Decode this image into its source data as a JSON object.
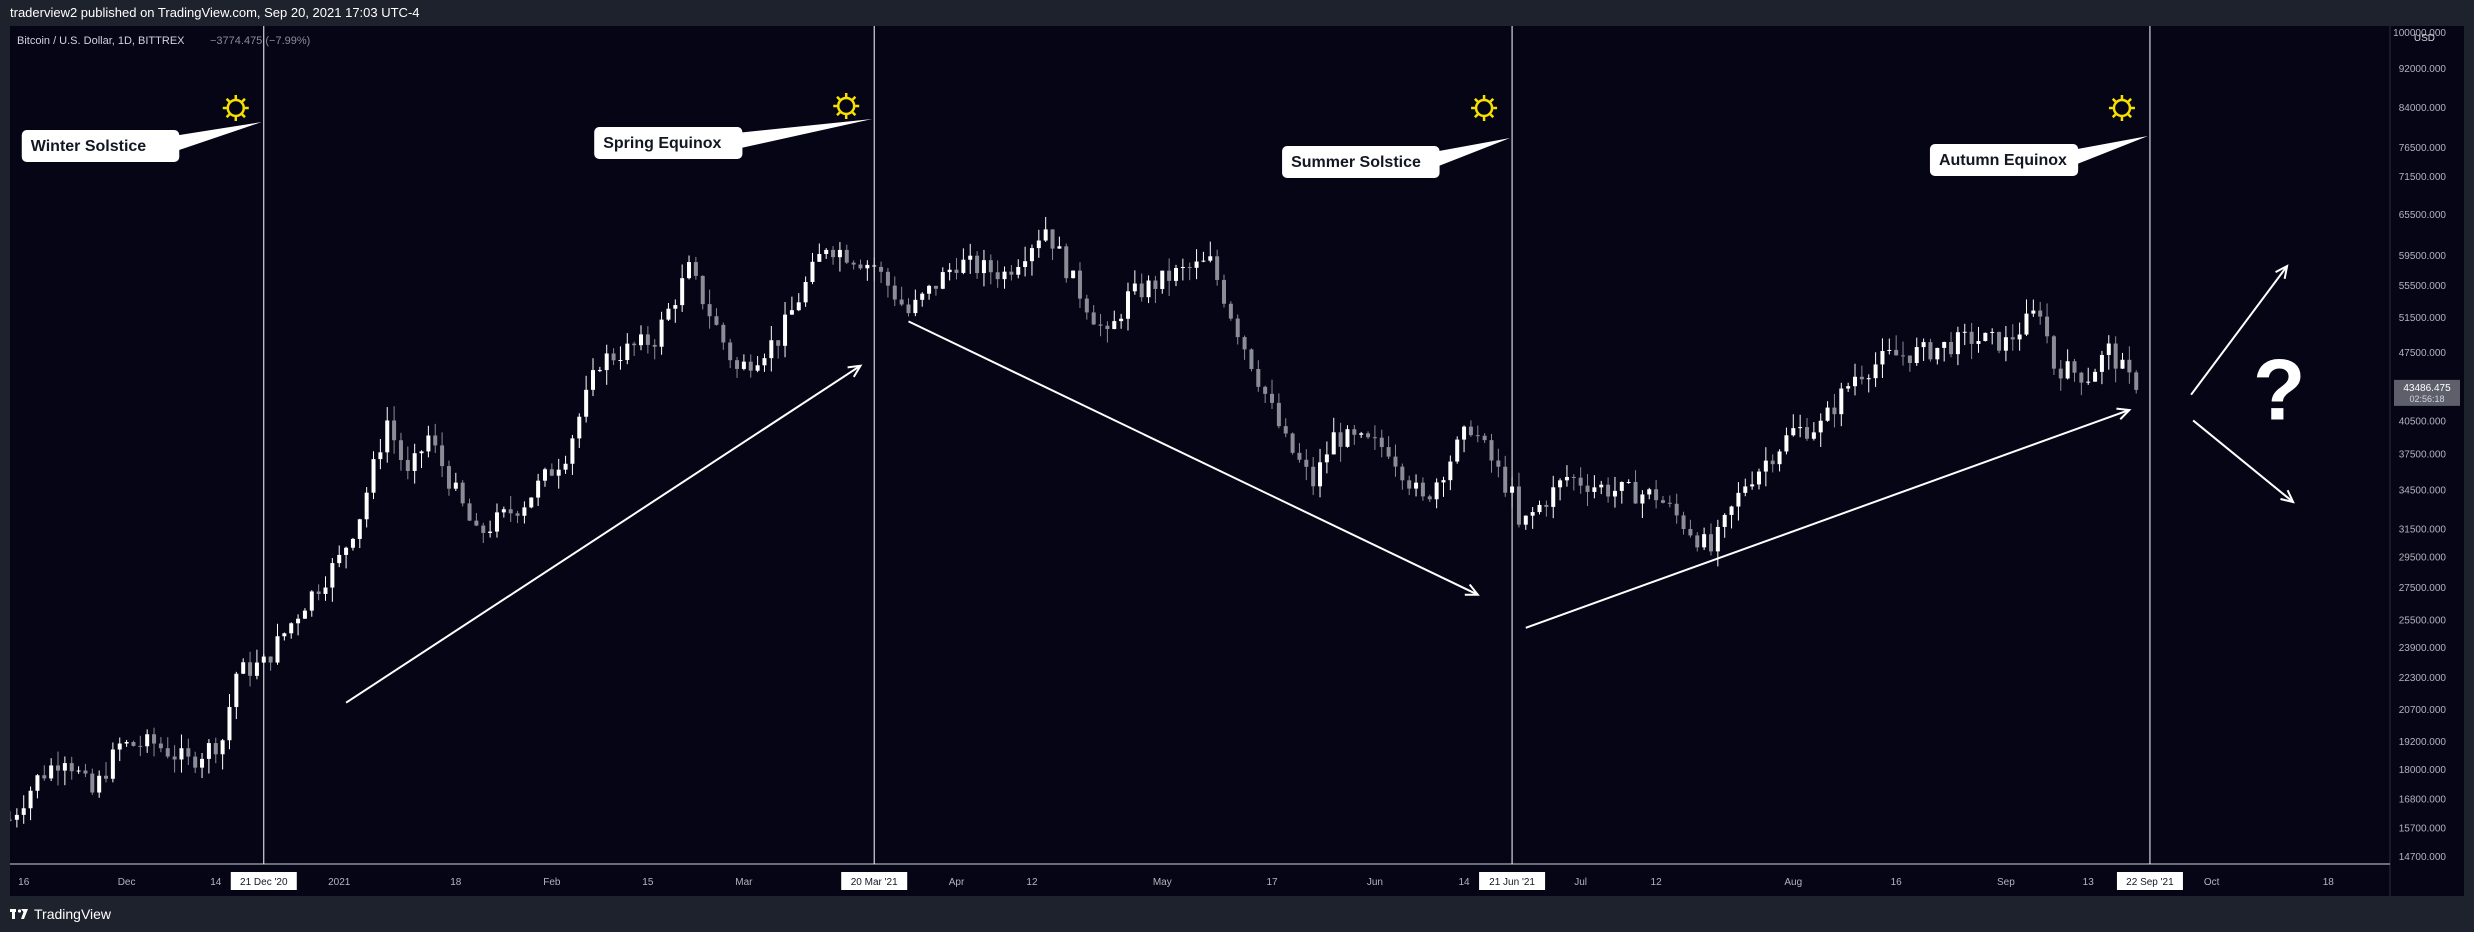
{
  "header": {
    "published_text": "traderview2 published on TradingView.com, Sep 20, 2021 17:03 UTC-4"
  },
  "footer": {
    "logo_glyph": "𝟭𝟳",
    "brand": "TradingView"
  },
  "colors": {
    "background": "#050516",
    "frame": "#1e222d",
    "candle_up": "#ffffff",
    "candle_down": "#8a8d96",
    "sun": "#f5e000",
    "accent_line": "#ffffff"
  },
  "chart_data": {
    "type": "candlestick",
    "symbol_text": "Bitcoin / U.S. Dollar, 1D, BITTREX",
    "change_text": "−3774.475 (−7.99%)",
    "currency": "USD",
    "y_scale": "log",
    "ylim": [
      14700,
      100000
    ],
    "y_ticks": [
      "100000.000",
      "92000.000",
      "84000.000",
      "76500.000",
      "71500.000",
      "65500.000",
      "59500.000",
      "55500.000",
      "51500.000",
      "47500.000",
      "43486.475",
      "40500.000",
      "37500.000",
      "34500.000",
      "31500.000",
      "29500.000",
      "27500.000",
      "25500.000",
      "23900.000",
      "22300.000",
      "20700.000",
      "19200.000",
      "18000.000",
      "16800.000",
      "15700.000",
      "14700.000"
    ],
    "price_label": "43486.475",
    "countdown_label": "02:56:18",
    "x_range": [
      "2020-11-14",
      "2021-10-27"
    ],
    "x_ticks": [
      {
        "date": "2020-11-16",
        "label": "16"
      },
      {
        "date": "2020-12-01",
        "label": "Dec"
      },
      {
        "date": "2020-12-14",
        "label": "14"
      },
      {
        "date": "2021-01-01",
        "label": "2021"
      },
      {
        "date": "2021-01-18",
        "label": "18"
      },
      {
        "date": "2021-02-01",
        "label": "Feb"
      },
      {
        "date": "2021-02-15",
        "label": "15"
      },
      {
        "date": "2021-03-01",
        "label": "Mar"
      },
      {
        "date": "2021-04-01",
        "label": "Apr"
      },
      {
        "date": "2021-04-12",
        "label": "12"
      },
      {
        "date": "2021-05-01",
        "label": "May"
      },
      {
        "date": "2021-05-17",
        "label": "17"
      },
      {
        "date": "2021-06-01",
        "label": "Jun"
      },
      {
        "date": "2021-06-14",
        "label": "14"
      },
      {
        "date": "2021-07-01",
        "label": "Jul"
      },
      {
        "date": "2021-07-12",
        "label": "12"
      },
      {
        "date": "2021-08-01",
        "label": "Aug"
      },
      {
        "date": "2021-08-16",
        "label": "16"
      },
      {
        "date": "2021-09-01",
        "label": "Sep"
      },
      {
        "date": "2021-09-13",
        "label": "13"
      },
      {
        "date": "2021-10-01",
        "label": "Oct"
      },
      {
        "date": "2021-10-18",
        "label": "18"
      }
    ],
    "events": [
      {
        "date": "2020-12-21",
        "date_label": "21 Dec '20",
        "label": "Winter Solstice"
      },
      {
        "date": "2021-03-20",
        "date_label": "20 Mar '21",
        "label": "Spring Equinox"
      },
      {
        "date": "2021-06-21",
        "date_label": "21 Jun '21",
        "label": "Summer Solstice"
      },
      {
        "date": "2021-09-22",
        "date_label": "22 Sep '21",
        "label": "Autumn Equinox"
      }
    ],
    "trend_arrows": [
      {
        "from": [
          "2021-01-02",
          21000
        ],
        "to": [
          "2021-03-18",
          46000
        ]
      },
      {
        "from": [
          "2021-03-25",
          51000
        ],
        "to": [
          "2021-06-16",
          27000
        ]
      },
      {
        "from": [
          "2021-06-23",
          25000
        ],
        "to": [
          "2021-09-19",
          41500
        ]
      }
    ],
    "question_mark": "?",
    "close_path": [
      [
        "2020-11-14",
        16000
      ],
      [
        "2020-11-18",
        17600
      ],
      [
        "2020-11-22",
        18600
      ],
      [
        "2020-11-26",
        17000
      ],
      [
        "2020-11-30",
        19000
      ],
      [
        "2020-12-05",
        19100
      ],
      [
        "2020-12-10",
        18300
      ],
      [
        "2020-12-15",
        19300
      ],
      [
        "2020-12-17",
        22500
      ],
      [
        "2020-12-21",
        23000
      ],
      [
        "2020-12-27",
        26500
      ],
      [
        "2021-01-01",
        29300
      ],
      [
        "2021-01-04",
        32500
      ],
      [
        "2021-01-08",
        40500
      ],
      [
        "2021-01-11",
        35500
      ],
      [
        "2021-01-14",
        39000
      ],
      [
        "2021-01-21",
        31000
      ],
      [
        "2021-01-28",
        33500
      ],
      [
        "2021-02-03",
        37500
      ],
      [
        "2021-02-08",
        46500
      ],
      [
        "2021-02-16",
        49000
      ],
      [
        "2021-02-21",
        57500
      ],
      [
        "2021-02-28",
        45500
      ],
      [
        "2021-03-06",
        49000
      ],
      [
        "2021-03-13",
        61000
      ],
      [
        "2021-03-20",
        58000
      ],
      [
        "2021-03-25",
        52000
      ],
      [
        "2021-04-01",
        58500
      ],
      [
        "2021-04-08",
        57000
      ],
      [
        "2021-04-14",
        63500
      ],
      [
        "2021-04-18",
        56000
      ],
      [
        "2021-04-23",
        49000
      ],
      [
        "2021-04-26",
        54000
      ],
      [
        "2021-05-03",
        57000
      ],
      [
        "2021-05-08",
        58500
      ],
      [
        "2021-05-12",
        50000
      ],
      [
        "2021-05-19",
        38500
      ],
      [
        "2021-05-23",
        35000
      ],
      [
        "2021-05-26",
        39000
      ],
      [
        "2021-06-03",
        38000
      ],
      [
        "2021-06-08",
        33500
      ],
      [
        "2021-06-15",
        40000
      ],
      [
        "2021-06-21",
        34000
      ],
      [
        "2021-06-22",
        31500
      ],
      [
        "2021-06-29",
        35500
      ],
      [
        "2021-07-05",
        34500
      ],
      [
        "2021-07-12",
        34000
      ],
      [
        "2021-07-20",
        29900
      ],
      [
        "2021-07-25",
        35000
      ],
      [
        "2021-08-01",
        39500
      ],
      [
        "2021-08-05",
        40000
      ],
      [
        "2021-08-10",
        45000
      ],
      [
        "2021-08-15",
        47000
      ],
      [
        "2021-08-20",
        47500
      ],
      [
        "2021-08-27",
        49000
      ],
      [
        "2021-09-01",
        48500
      ],
      [
        "2021-09-06",
        52500
      ],
      [
        "2021-09-08",
        46000
      ],
      [
        "2021-09-13",
        44900
      ],
      [
        "2021-09-16",
        47700
      ],
      [
        "2021-09-20",
        43486
      ]
    ]
  }
}
